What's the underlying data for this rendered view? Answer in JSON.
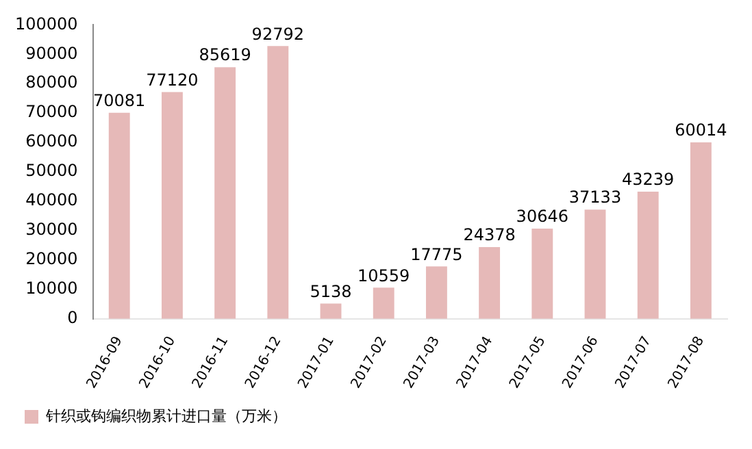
{
  "chart_data": {
    "type": "bar",
    "categories": [
      "2016-09",
      "2016-10",
      "2016-11",
      "2016-12",
      "2017-01",
      "2017-02",
      "2017-03",
      "2017-04",
      "2017-05",
      "2017-06",
      "2017-07",
      "2017-08"
    ],
    "series": [
      {
        "name": "针织或钩编织物累计进口量（万米）",
        "color": "#e6b9b8",
        "values": [
          70081,
          77120,
          85619,
          92792,
          5138,
          10559,
          17775,
          24378,
          30646,
          37133,
          43239,
          60014
        ]
      }
    ],
    "ylim": [
      0,
      100000
    ],
    "yticks": [
      0,
      10000,
      20000,
      30000,
      40000,
      50000,
      60000,
      70000,
      80000,
      90000,
      100000
    ],
    "grid": false,
    "legend": "bottom",
    "data_labels": true
  }
}
